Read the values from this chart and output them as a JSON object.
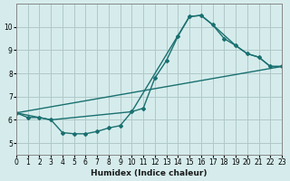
{
  "xlabel": "Humidex (Indice chaleur)",
  "bg_color": "#d6ecec",
  "grid_color": "#b0c8c8",
  "line_color": "#1a7070",
  "xlim": [
    0,
    23
  ],
  "ylim": [
    4.5,
    11
  ],
  "yticks": [
    5,
    6,
    7,
    8,
    9,
    10
  ],
  "xticks": [
    0,
    1,
    2,
    3,
    4,
    5,
    6,
    7,
    8,
    9,
    10,
    11,
    12,
    13,
    14,
    15,
    16,
    17,
    18,
    19,
    20,
    21,
    22,
    23
  ],
  "line1_x": [
    0,
    1,
    2,
    3,
    4,
    5,
    6,
    7,
    8,
    9,
    10,
    11,
    12,
    13,
    14,
    15,
    16,
    17,
    18,
    19,
    20,
    21,
    22,
    23
  ],
  "line1_y": [
    6.3,
    6.1,
    6.1,
    6.0,
    5.45,
    5.4,
    5.4,
    5.5,
    5.65,
    5.75,
    6.35,
    6.5,
    7.8,
    8.55,
    9.6,
    10.45,
    10.5,
    10.1,
    9.5,
    9.2,
    8.85,
    8.7,
    8.3,
    8.3
  ],
  "line2_x": [
    0,
    3,
    10,
    15,
    16,
    17,
    19,
    20,
    21,
    22,
    23
  ],
  "line2_y": [
    6.3,
    6.0,
    6.35,
    10.45,
    10.5,
    10.1,
    9.2,
    8.85,
    8.7,
    8.3,
    8.3
  ],
  "line3_x": [
    0,
    23
  ],
  "line3_y": [
    6.3,
    8.3
  ]
}
